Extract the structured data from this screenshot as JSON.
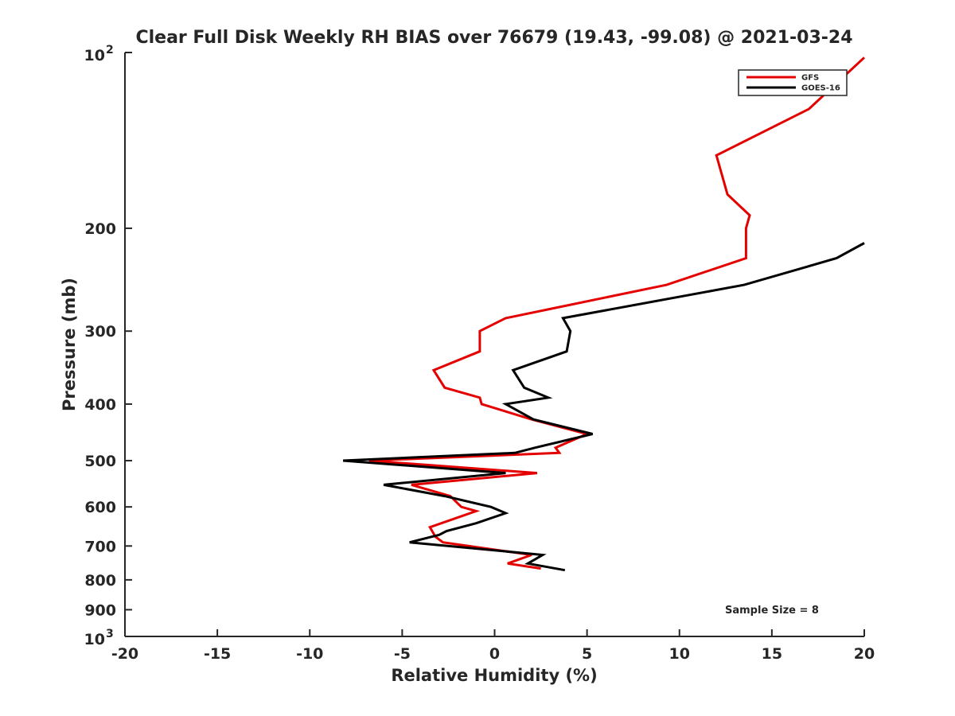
{
  "chart_data": {
    "type": "line",
    "title": "Clear Full Disk Weekly RH BIAS over 76679 (19.43, -99.08) @ 2021-03-24",
    "xlabel": "Relative Humidity (%)",
    "ylabel": "Pressure (mb)",
    "xlim": [
      -20,
      20
    ],
    "ylim": [
      100,
      1000
    ],
    "y_scale": "log",
    "y_reversed": true,
    "x_ticks": [
      "-20",
      "-15",
      "-10",
      "-5",
      "0",
      "5",
      "10",
      "15",
      "20"
    ],
    "y_ticks": [
      {
        "value": 100,
        "base": "10",
        "exp": "2"
      },
      {
        "value": 200,
        "label": "200"
      },
      {
        "value": 300,
        "label": "300"
      },
      {
        "value": 400,
        "label": "400"
      },
      {
        "value": 500,
        "label": "500"
      },
      {
        "value": 600,
        "label": "600"
      },
      {
        "value": 700,
        "label": "700"
      },
      {
        "value": 800,
        "label": "800"
      },
      {
        "value": 900,
        "label": "900"
      },
      {
        "value": 1000,
        "base": "10",
        "exp": "3"
      }
    ],
    "legend_position": "top-right",
    "grid": false,
    "annotation": "Sample Size = 8",
    "series": [
      {
        "name": "GFS",
        "color": "#e50000",
        "points": [
          {
            "x": 20.0,
            "y": 102
          },
          {
            "x": 17.0,
            "y": 125
          },
          {
            "x": 12.0,
            "y": 150
          },
          {
            "x": 12.6,
            "y": 175
          },
          {
            "x": 13.8,
            "y": 190
          },
          {
            "x": 13.6,
            "y": 200
          },
          {
            "x": 13.6,
            "y": 225
          },
          {
            "x": 9.3,
            "y": 250
          },
          {
            "x": 4.2,
            "y": 270
          },
          {
            "x": 0.6,
            "y": 285
          },
          {
            "x": -0.8,
            "y": 300
          },
          {
            "x": -0.8,
            "y": 325
          },
          {
            "x": -3.3,
            "y": 350
          },
          {
            "x": -2.7,
            "y": 375
          },
          {
            "x": -0.8,
            "y": 390
          },
          {
            "x": -0.7,
            "y": 400
          },
          {
            "x": 2.0,
            "y": 425
          },
          {
            "x": 5.0,
            "y": 450
          },
          {
            "x": 3.3,
            "y": 475
          },
          {
            "x": 3.5,
            "y": 485
          },
          {
            "x": -6.8,
            "y": 500
          },
          {
            "x": 2.3,
            "y": 525
          },
          {
            "x": -4.5,
            "y": 550
          },
          {
            "x": -2.4,
            "y": 575
          },
          {
            "x": -1.8,
            "y": 600
          },
          {
            "x": -1.0,
            "y": 610
          },
          {
            "x": -3.5,
            "y": 650
          },
          {
            "x": -3.2,
            "y": 675
          },
          {
            "x": -2.8,
            "y": 690
          },
          {
            "x": 2.0,
            "y": 725
          },
          {
            "x": 0.7,
            "y": 750
          },
          {
            "x": 2.5,
            "y": 765
          }
        ]
      },
      {
        "name": "GOES-16",
        "color": "#000000",
        "points": [
          {
            "x": 20.0,
            "y": 212
          },
          {
            "x": 18.5,
            "y": 225
          },
          {
            "x": 13.5,
            "y": 250
          },
          {
            "x": 3.7,
            "y": 285
          },
          {
            "x": 4.1,
            "y": 300
          },
          {
            "x": 3.9,
            "y": 325
          },
          {
            "x": 1.0,
            "y": 350
          },
          {
            "x": 1.6,
            "y": 375
          },
          {
            "x": 2.9,
            "y": 390
          },
          {
            "x": 0.6,
            "y": 400
          },
          {
            "x": 2.1,
            "y": 425
          },
          {
            "x": 5.3,
            "y": 450
          },
          {
            "x": 2.2,
            "y": 475
          },
          {
            "x": 1.1,
            "y": 485
          },
          {
            "x": -8.2,
            "y": 500
          },
          {
            "x": 0.6,
            "y": 525
          },
          {
            "x": -6.0,
            "y": 550
          },
          {
            "x": -2.7,
            "y": 575
          },
          {
            "x": -0.2,
            "y": 600
          },
          {
            "x": 0.6,
            "y": 615
          },
          {
            "x": -1.0,
            "y": 640
          },
          {
            "x": -2.6,
            "y": 660
          },
          {
            "x": -3.0,
            "y": 670
          },
          {
            "x": -4.6,
            "y": 690
          },
          {
            "x": 2.6,
            "y": 725
          },
          {
            "x": 1.8,
            "y": 750
          },
          {
            "x": 3.8,
            "y": 770
          }
        ]
      }
    ]
  }
}
